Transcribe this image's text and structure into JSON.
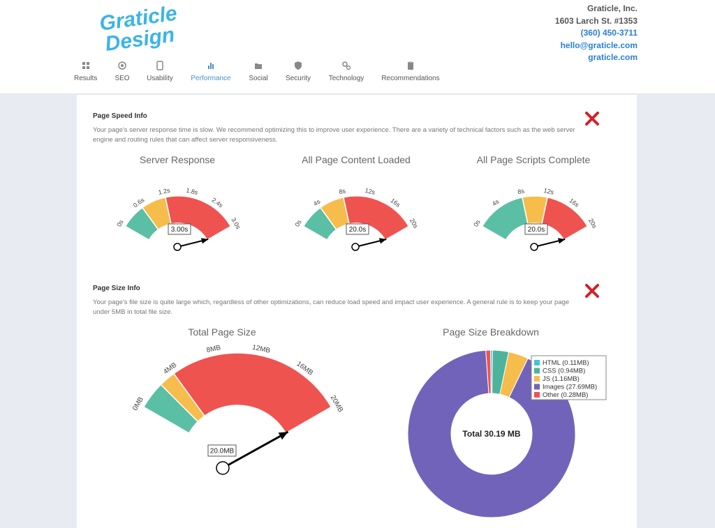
{
  "header": {
    "logo_text": [
      "Graticle",
      "Design"
    ],
    "company": {
      "name": "Graticle, Inc.",
      "address": "1603 Larch St. #1353",
      "phone": "(360) 450-3711",
      "email": "hello@graticle.com",
      "website": "graticle.com"
    }
  },
  "nav": {
    "active": "Performance",
    "items": [
      {
        "label": "Results",
        "icon": "grid-icon"
      },
      {
        "label": "SEO",
        "icon": "target-icon"
      },
      {
        "label": "Usability",
        "icon": "tablet-icon"
      },
      {
        "label": "Performance",
        "icon": "bar-chart-icon"
      },
      {
        "label": "Social",
        "icon": "folder-icon"
      },
      {
        "label": "Security",
        "icon": "shield-icon"
      },
      {
        "label": "Technology",
        "icon": "gears-icon"
      },
      {
        "label": "Recommendations",
        "icon": "clipboard-icon"
      }
    ]
  },
  "speed": {
    "title": "Page Speed Info",
    "status": "fail",
    "description": "Your page's server response time is slow. We recommend optimizing this to improve user experience. There are a variety of technical factors such as the web server engine and routing rules that can affect server responsiveness."
  },
  "size": {
    "title": "Page Size Info",
    "status": "fail",
    "description": "Your page's file size is quite large which, regardless of other optimizations, can reduce load speed and impact user experience. A general rule is to keep your page under 5MB in total file size."
  },
  "colors": {
    "green": "#5bbfa6",
    "yellow": "#f6bc4c",
    "red": "#ef5350",
    "purple": "#7263ba",
    "cyan": "#40c4e0",
    "teal": "#4db39c",
    "fail_icon": "#d42027"
  },
  "chart_data": [
    {
      "type": "gauge",
      "title": "Server Response",
      "min": 0,
      "max": 3,
      "ticks": [
        "0s",
        "0.6s",
        "1.2s",
        "1.8s",
        "2.4s",
        "3.0s"
      ],
      "bands": [
        {
          "from": 0,
          "to": 0.6,
          "color": "green"
        },
        {
          "from": 0.6,
          "to": 1.2,
          "color": "yellow"
        },
        {
          "from": 1.2,
          "to": 3,
          "color": "red"
        }
      ],
      "value": 3,
      "readout": "3.00s"
    },
    {
      "type": "gauge",
      "title": "All Page Content Loaded",
      "min": 0,
      "max": 20,
      "ticks": [
        "0s",
        "4s",
        "8s",
        "12s",
        "16s",
        "20s"
      ],
      "bands": [
        {
          "from": 0,
          "to": 4,
          "color": "green"
        },
        {
          "from": 4,
          "to": 8,
          "color": "yellow"
        },
        {
          "from": 8,
          "to": 20,
          "color": "red"
        }
      ],
      "value": 20,
      "readout": "20.0s"
    },
    {
      "type": "gauge",
      "title": "All Page Scripts Complete",
      "min": 0,
      "max": 20,
      "ticks": [
        "0s",
        "4s",
        "8s",
        "12s",
        "16s",
        "20s"
      ],
      "bands": [
        {
          "from": 0,
          "to": 8,
          "color": "green"
        },
        {
          "from": 8,
          "to": 12,
          "color": "yellow"
        },
        {
          "from": 12,
          "to": 20,
          "color": "red"
        }
      ],
      "value": 20,
      "readout": "20.0s"
    },
    {
      "type": "gauge",
      "title": "Total Page Size",
      "min": 0,
      "max": 20,
      "ticks": [
        "0MB",
        "4MB",
        "8MB",
        "12MB",
        "16MB",
        "20MB"
      ],
      "bands": [
        {
          "from": 0,
          "to": 2.5,
          "color": "green"
        },
        {
          "from": 2.5,
          "to": 4,
          "color": "yellow"
        },
        {
          "from": 4,
          "to": 20,
          "color": "red"
        }
      ],
      "value": 20,
      "readout": "20.0MB"
    },
    {
      "type": "pie",
      "title": "Page Size Breakdown",
      "center_label": "Total 30.19 MB",
      "slices": [
        {
          "label": "HTML (0.11MB)",
          "value": 0.11,
          "color": "cyan"
        },
        {
          "label": "CSS (0.94MB)",
          "value": 0.94,
          "color": "teal"
        },
        {
          "label": "JS (1.16MB)",
          "value": 1.16,
          "color": "yellow"
        },
        {
          "label": "Images (27.69MB)",
          "value": 27.69,
          "color": "purple"
        },
        {
          "label": "Other (0.28MB)",
          "value": 0.28,
          "color": "red"
        }
      ],
      "legend": "top-right"
    }
  ]
}
